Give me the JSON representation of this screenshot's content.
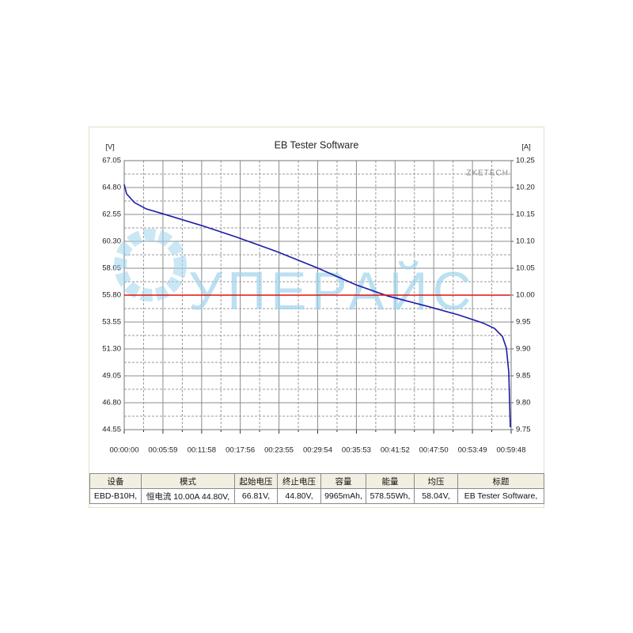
{
  "chart_data": {
    "type": "line",
    "title": "EB Tester Software",
    "y_label": "[V]",
    "y2_label": "[A]",
    "watermark": "ZKETECH",
    "logo_text": "УПЕРАЙС",
    "x": [
      0,
      22,
      95,
      205,
      352,
      719,
      1049,
      1416,
      1783,
      2150,
      2443,
      2810,
      3104,
      3324,
      3434,
      3507,
      3544,
      3566,
      3580
    ],
    "series": [
      {
        "name": "Voltage",
        "color": "#1c1ca8",
        "values": [
          65.06,
          64.27,
          63.54,
          63.01,
          62.62,
          61.62,
          60.63,
          59.44,
          58.11,
          56.66,
          55.73,
          54.87,
          54.14,
          53.48,
          53.02,
          52.35,
          51.36,
          49.37,
          44.75
        ]
      },
      {
        "name": "Current",
        "color": "#e01010",
        "axis": "y2",
        "values": [
          10.0,
          10.0,
          10.0,
          10.0,
          10.0,
          10.0,
          10.0,
          10.0,
          10.0,
          10.0,
          10.0,
          10.0,
          10.0,
          10.0,
          10.0,
          10.0,
          10.0,
          10.0,
          10.0
        ]
      }
    ],
    "xlim": [
      0,
      3588
    ],
    "xticks": [
      {
        "value": 0,
        "label": "00:00:00"
      },
      {
        "value": 359,
        "label": "00:05:59"
      },
      {
        "value": 718,
        "label": "00:11:58"
      },
      {
        "value": 1076,
        "label": "00:17:56"
      },
      {
        "value": 1435,
        "label": "00:23:55"
      },
      {
        "value": 1794,
        "label": "00:29:54"
      },
      {
        "value": 2153,
        "label": "00:35:53"
      },
      {
        "value": 2512,
        "label": "00:41:52"
      },
      {
        "value": 2870,
        "label": "00:47:50"
      },
      {
        "value": 3229,
        "label": "00:53:49"
      },
      {
        "value": 3588,
        "label": "00:59:48"
      }
    ],
    "ylim": [
      44.55,
      67.05
    ],
    "yticks": [
      44.55,
      {
        "value": 46.8,
        "label": "46.80"
      },
      49.05,
      {
        "value": 51.3,
        "label": "51.30"
      },
      53.55,
      {
        "value": 55.8,
        "label": "55.80"
      },
      58.05,
      {
        "value": 60.3,
        "label": "60.30"
      },
      62.55,
      {
        "value": 64.8,
        "label": "64.80"
      },
      67.05
    ],
    "y2lim": [
      9.75,
      10.25
    ],
    "y2ticks": [
      9.75,
      {
        "value": 9.8,
        "label": "9.80"
      },
      9.85,
      {
        "value": 9.9,
        "label": "9.90"
      },
      9.95,
      {
        "value": 10.0,
        "label": "10.00"
      },
      10.05,
      {
        "value": 10.1,
        "label": "10.10"
      },
      10.15,
      {
        "value": 10.2,
        "label": "10.20"
      },
      10.25
    ],
    "grid": true
  },
  "table": {
    "header": [
      "设备",
      "模式",
      "起始电压",
      "终止电压",
      "容量",
      "能量",
      "均压",
      "标题"
    ],
    "rows": [
      [
        "EBD-B10H,",
        "恒电流 10.00A 44.80V,",
        "66.81V,",
        "44.80V,",
        "9965mAh,",
        "578.55Wh,",
        "58.04V,",
        "EB Tester Software,"
      ]
    ]
  }
}
